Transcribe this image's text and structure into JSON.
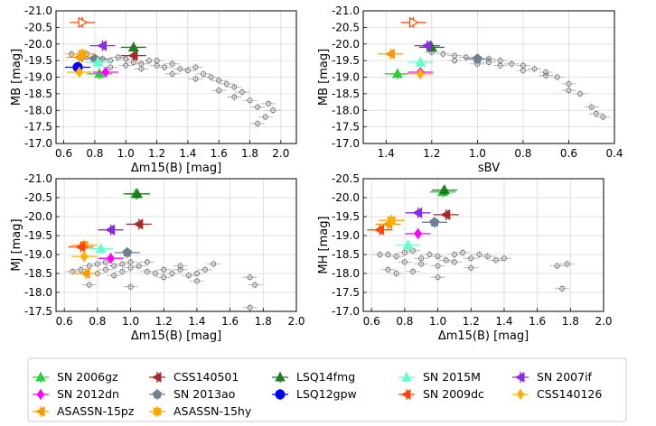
{
  "colors": {
    "SN 2006gz": "#2ecc40",
    "SN 2012dn": "#ff00ff",
    "ASASSN-15pz": "#ff9900",
    "CSS140501": "#a52a2a",
    "SN 2013ao": "#708090",
    "ASASSN-15hy": "#ffa500",
    "LSQ14fmg": "#1e7b1e",
    "LSQ12gpw": "#0000ff",
    "SN 2015M": "#66ffcc",
    "SN 2009dc": "#ff4500",
    "SN 2007if": "#8a2be2",
    "CSS140126": "#ffb000",
    "normal": "#808080"
  },
  "legend": {
    "columns": [
      [
        "SN 2006gz",
        "SN 2012dn",
        "ASASSN-15pz"
      ],
      [
        "CSS140501",
        "SN 2013ao",
        "ASASSN-15hy"
      ],
      [
        "LSQ14fmg",
        "LSQ12gpw"
      ],
      [
        "SN 2015M",
        "SN 2009dc"
      ],
      [
        "SN 2007if",
        "CSS140126"
      ]
    ]
  },
  "chart_data": [
    {
      "type": "scatter",
      "id": "mb_dm15",
      "xlabel": "Δm15(B) [mag]",
      "ylabel": "MB [mag]",
      "xlim": [
        0.55,
        2.1
      ],
      "ylim": [
        -17.0,
        -21.0
      ],
      "xticks": [
        "0.6",
        "0.8",
        "1.0",
        "1.2",
        "1.4",
        "1.6",
        "1.8",
        "2.0"
      ],
      "yticks": [
        "-21.0",
        "-20.5",
        "-20.0",
        "-19.5",
        "-19.0",
        "-18.5",
        "-18.0",
        "-17.5",
        "-17.0"
      ],
      "grid": true,
      "normal": [
        [
          0.75,
          -19.7
        ],
        [
          0.8,
          -19.6
        ],
        [
          0.85,
          -19.55
        ],
        [
          0.9,
          -19.5
        ],
        [
          0.95,
          -19.6
        ],
        [
          1.0,
          -19.55
        ],
        [
          1.05,
          -19.45
        ],
        [
          1.1,
          -19.4
        ],
        [
          1.15,
          -19.5
        ],
        [
          1.2,
          -19.35
        ],
        [
          1.25,
          -19.3
        ],
        [
          1.3,
          -19.4
        ],
        [
          1.35,
          -19.25
        ],
        [
          1.4,
          -19.2
        ],
        [
          1.45,
          -19.3
        ],
        [
          1.5,
          -19.1
        ],
        [
          1.55,
          -19.0
        ],
        [
          1.6,
          -18.9
        ],
        [
          1.65,
          -18.8
        ],
        [
          1.7,
          -18.7
        ],
        [
          1.75,
          -18.55
        ],
        [
          1.8,
          -18.3
        ],
        [
          1.85,
          -18.1
        ],
        [
          1.9,
          -17.8
        ],
        [
          1.92,
          -18.2
        ],
        [
          1.95,
          -18.0
        ],
        [
          0.9,
          -19.3
        ],
        [
          1.0,
          -19.35
        ],
        [
          1.1,
          -19.25
        ],
        [
          1.3,
          -19.1
        ],
        [
          1.45,
          -18.95
        ],
        [
          1.6,
          -18.6
        ],
        [
          1.7,
          -18.4
        ],
        [
          1.85,
          -17.6
        ],
        [
          0.65,
          -19.7
        ],
        [
          1.2,
          -19.5
        ]
      ],
      "special": [
        {
          "name": "SN 2006gz",
          "x": 0.83,
          "y": -19.1,
          "marker": "up"
        },
        {
          "name": "SN 2012dn",
          "x": 0.87,
          "y": -19.15,
          "marker": "diamond"
        },
        {
          "name": "ASASSN-15pz",
          "x": 0.7,
          "y": -19.6,
          "marker": "left"
        },
        {
          "name": "CSS140501",
          "x": 1.05,
          "y": -19.65,
          "marker": "left"
        },
        {
          "name": "SN 2013ao",
          "x": 0.8,
          "y": -19.55,
          "marker": "pentagon"
        },
        {
          "name": "ASASSN-15hy",
          "x": 0.72,
          "y": -19.7,
          "marker": "square"
        },
        {
          "name": "LSQ14fmg",
          "x": 1.05,
          "y": -19.9,
          "marker": "up"
        },
        {
          "name": "LSQ12gpw",
          "x": 0.69,
          "y": -19.3,
          "marker": "circle"
        },
        {
          "name": "SN 2015M",
          "x": 0.82,
          "y": -19.45,
          "marker": "up"
        },
        {
          "name": "SN 2009dc",
          "x": 0.72,
          "y": -20.65,
          "marker": "right-open"
        },
        {
          "name": "SN 2007if",
          "x": 0.85,
          "y": -19.95,
          "marker": "left"
        },
        {
          "name": "CSS140126",
          "x": 0.7,
          "y": -19.15,
          "marker": "diamond"
        }
      ]
    },
    {
      "type": "scatter",
      "id": "mb_sbv",
      "xlabel": "sBV",
      "ylabel": "MB [mag]",
      "xlim": [
        1.5,
        0.4
      ],
      "ylim": [
        -17.0,
        -21.0
      ],
      "xticks": [
        "1.4",
        "1.2",
        "1.0",
        "0.8",
        "0.6",
        "0.4"
      ],
      "yticks": [
        "-21.0",
        "-20.5",
        "-20.0",
        "-19.5",
        "-19.0",
        "-18.5",
        "-18.0",
        "-17.5",
        "-17.0"
      ],
      "grid": true,
      "normal": [
        [
          1.15,
          -19.7
        ],
        [
          1.1,
          -19.65
        ],
        [
          1.05,
          -19.6
        ],
        [
          1.0,
          -19.55
        ],
        [
          0.95,
          -19.55
        ],
        [
          0.9,
          -19.5
        ],
        [
          0.85,
          -19.4
        ],
        [
          0.8,
          -19.35
        ],
        [
          0.75,
          -19.25
        ],
        [
          0.7,
          -19.15
        ],
        [
          0.65,
          -19.0
        ],
        [
          0.6,
          -18.8
        ],
        [
          0.55,
          -18.5
        ],
        [
          0.5,
          -18.1
        ],
        [
          0.48,
          -17.9
        ],
        [
          1.2,
          -19.75
        ],
        [
          1.0,
          -19.4
        ],
        [
          0.9,
          -19.35
        ],
        [
          0.8,
          -19.2
        ],
        [
          0.7,
          -19.05
        ],
        [
          0.6,
          -18.6
        ],
        [
          0.45,
          -17.8
        ],
        [
          1.1,
          -19.5
        ],
        [
          0.95,
          -19.45
        ]
      ],
      "special": [
        {
          "name": "SN 2006gz",
          "x": 1.35,
          "y": -19.1,
          "marker": "up"
        },
        {
          "name": "SN 2012dn",
          "x": 1.25,
          "y": -19.15,
          "marker": "diamond"
        },
        {
          "name": "ASASSN-15pz",
          "x": 1.38,
          "y": -19.7,
          "marker": "left"
        },
        {
          "name": "SN 2013ao",
          "x": 1.0,
          "y": -19.55,
          "marker": "pentagon"
        },
        {
          "name": "LSQ14fmg",
          "x": 1.2,
          "y": -19.9,
          "marker": "up"
        },
        {
          "name": "SN 2015M",
          "x": 1.25,
          "y": -19.45,
          "marker": "up"
        },
        {
          "name": "SN 2009dc",
          "x": 1.28,
          "y": -20.65,
          "marker": "right-open"
        },
        {
          "name": "SN 2007if",
          "x": 1.22,
          "y": -19.95,
          "marker": "left"
        },
        {
          "name": "CSS140126",
          "x": 1.25,
          "y": -19.1,
          "marker": "diamond"
        }
      ]
    },
    {
      "type": "scatter",
      "id": "mj_dm15",
      "xlabel": "Δm15(B) [mag]",
      "ylabel": "MJ [mag]",
      "xlim": [
        0.55,
        2.0
      ],
      "ylim": [
        -17.5,
        -21.0
      ],
      "xticks": [
        "0.6",
        "0.8",
        "1.0",
        "1.2",
        "1.4",
        "1.6",
        "1.8",
        "2.0"
      ],
      "yticks": [
        "-21.0",
        "-20.5",
        "-20.0",
        "-19.5",
        "-19.0",
        "-18.5",
        "-18.0",
        "-17.5"
      ],
      "grid": true,
      "normal": [
        [
          0.65,
          -18.55
        ],
        [
          0.7,
          -18.6
        ],
        [
          0.75,
          -18.7
        ],
        [
          0.8,
          -18.75
        ],
        [
          0.85,
          -18.8
        ],
        [
          0.9,
          -18.7
        ],
        [
          0.95,
          -18.75
        ],
        [
          1.0,
          -18.65
        ],
        [
          1.05,
          -18.7
        ],
        [
          1.1,
          -18.55
        ],
        [
          1.15,
          -18.5
        ],
        [
          1.2,
          -18.6
        ],
        [
          1.25,
          -18.5
        ],
        [
          1.3,
          -18.7
        ],
        [
          1.35,
          -18.45
        ],
        [
          1.4,
          -18.5
        ],
        [
          1.45,
          -18.6
        ],
        [
          1.5,
          -18.75
        ],
        [
          0.8,
          -18.5
        ],
        [
          0.9,
          -18.45
        ],
        [
          1.0,
          -18.8
        ],
        [
          1.1,
          -18.8
        ],
        [
          1.2,
          -18.4
        ],
        [
          1.3,
          -18.6
        ],
        [
          0.75,
          -18.2
        ],
        [
          1.0,
          -18.15
        ],
        [
          1.4,
          -18.3
        ],
        [
          1.72,
          -18.4
        ],
        [
          1.72,
          -17.6
        ],
        [
          1.75,
          -18.2
        ],
        [
          0.85,
          -18.6
        ],
        [
          0.95,
          -18.55
        ]
      ],
      "special": [
        {
          "name": "SN 2006gz",
          "x": 1.03,
          "y": -20.6,
          "marker": "up"
        },
        {
          "name": "SN 2012dn",
          "x": 0.88,
          "y": -18.9,
          "marker": "diamond"
        },
        {
          "name": "ASASSN-15pz",
          "x": 0.73,
          "y": -18.5,
          "marker": "left"
        },
        {
          "name": "CSS140501",
          "x": 1.05,
          "y": -19.8,
          "marker": "left"
        },
        {
          "name": "SN 2013ao",
          "x": 0.98,
          "y": -19.05,
          "marker": "pentagon"
        },
        {
          "name": "ASASSN-15hy",
          "x": 0.72,
          "y": -19.25,
          "marker": "square"
        },
        {
          "name": "LSQ14fmg",
          "x": 1.04,
          "y": -20.6,
          "marker": "up"
        },
        {
          "name": "SN 2015M",
          "x": 0.82,
          "y": -19.15,
          "marker": "up"
        },
        {
          "name": "SN 2009dc",
          "x": 0.7,
          "y": -19.2,
          "marker": "left"
        },
        {
          "name": "SN 2007if",
          "x": 0.88,
          "y": -19.65,
          "marker": "left"
        },
        {
          "name": "CSS140126",
          "x": 0.72,
          "y": -18.95,
          "marker": "diamond"
        }
      ]
    },
    {
      "type": "scatter",
      "id": "mh_dm15",
      "xlabel": "Δm15(B) [mag]",
      "ylabel": "MH [mag]",
      "xlim": [
        0.55,
        2.0
      ],
      "ylim": [
        -17.0,
        -20.5
      ],
      "xticks": [
        "0.6",
        "0.8",
        "1.0",
        "1.2",
        "1.4",
        "1.6",
        "1.8",
        "2.0"
      ],
      "yticks": [
        "-20.5",
        "-20.0",
        "-19.5",
        "-19.0",
        "-18.5",
        "-18.0",
        "-17.5",
        "-17.0"
      ],
      "grid": true,
      "normal": [
        [
          0.65,
          -18.5
        ],
        [
          0.7,
          -18.5
        ],
        [
          0.75,
          -18.45
        ],
        [
          0.8,
          -18.55
        ],
        [
          0.85,
          -18.6
        ],
        [
          0.9,
          -18.4
        ],
        [
          0.95,
          -18.5
        ],
        [
          1.0,
          -18.45
        ],
        [
          1.05,
          -18.35
        ],
        [
          1.1,
          -18.5
        ],
        [
          1.15,
          -18.55
        ],
        [
          1.2,
          -18.4
        ],
        [
          1.25,
          -18.5
        ],
        [
          1.3,
          -18.45
        ],
        [
          1.35,
          -18.35
        ],
        [
          1.4,
          -18.4
        ],
        [
          0.8,
          -18.3
        ],
        [
          0.9,
          -18.25
        ],
        [
          1.0,
          -18.2
        ],
        [
          1.1,
          -18.3
        ],
        [
          1.2,
          -18.15
        ],
        [
          0.75,
          -18.0
        ],
        [
          0.85,
          -18.05
        ],
        [
          1.0,
          -17.9
        ],
        [
          1.72,
          -18.2
        ],
        [
          1.75,
          -17.6
        ],
        [
          1.78,
          -18.25
        ],
        [
          0.7,
          -18.1
        ]
      ],
      "special": [
        {
          "name": "SN 2006gz",
          "x": 1.03,
          "y": -20.15,
          "marker": "up"
        },
        {
          "name": "SN 2012dn",
          "x": 0.88,
          "y": -19.05,
          "marker": "diamond"
        },
        {
          "name": "ASASSN-15pz",
          "x": 0.7,
          "y": -19.3,
          "marker": "left"
        },
        {
          "name": "CSS140501",
          "x": 1.05,
          "y": -19.55,
          "marker": "left"
        },
        {
          "name": "SN 2013ao",
          "x": 0.98,
          "y": -19.35,
          "marker": "pentagon"
        },
        {
          "name": "ASASSN-15hy",
          "x": 0.72,
          "y": -19.4,
          "marker": "square"
        },
        {
          "name": "LSQ14fmg",
          "x": 1.04,
          "y": -20.2,
          "marker": "up"
        },
        {
          "name": "SN 2015M",
          "x": 0.82,
          "y": -18.75,
          "marker": "up"
        },
        {
          "name": "SN 2009dc",
          "x": 0.65,
          "y": -19.15,
          "marker": "left"
        },
        {
          "name": "SN 2007if",
          "x": 0.88,
          "y": -19.6,
          "marker": "left"
        },
        {
          "name": "CSS140126",
          "x": 0.72,
          "y": -19.4,
          "marker": "diamond"
        }
      ]
    }
  ]
}
